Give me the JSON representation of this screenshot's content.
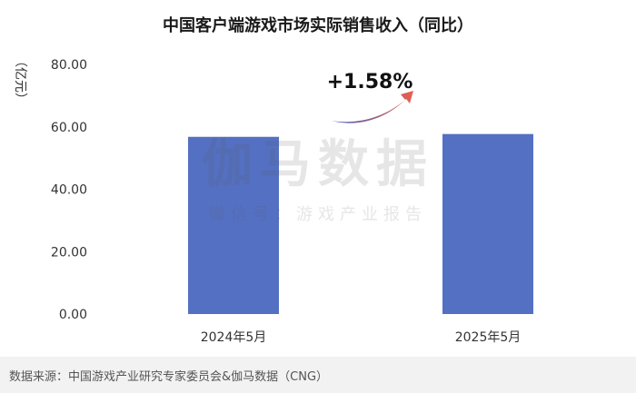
{
  "chart_data": {
    "type": "bar",
    "title": "中国客户端游戏市场实际销售收入（同比）",
    "ylabel": "（亿元）",
    "categories": [
      "2024年5月",
      "2025年5月"
    ],
    "values": [
      56.8,
      57.7
    ],
    "ylim": [
      0,
      80
    ],
    "yticks": [
      "0.00",
      "20.00",
      "40.00",
      "60.00",
      "80.00"
    ],
    "annotation": "+1.58%",
    "bar_color": "#5470c2",
    "grid": false
  },
  "watermark": {
    "main": "伽马数据",
    "sub": "微信号：游戏产业报告"
  },
  "footer": {
    "source": "数据来源：中国游戏产业研究专家委员会&伽马数据（CNG）"
  },
  "colors": {
    "arrow_start": "#3f5cc0",
    "arrow_end": "#e8604a",
    "footer_bg": "#f2f2f2"
  }
}
